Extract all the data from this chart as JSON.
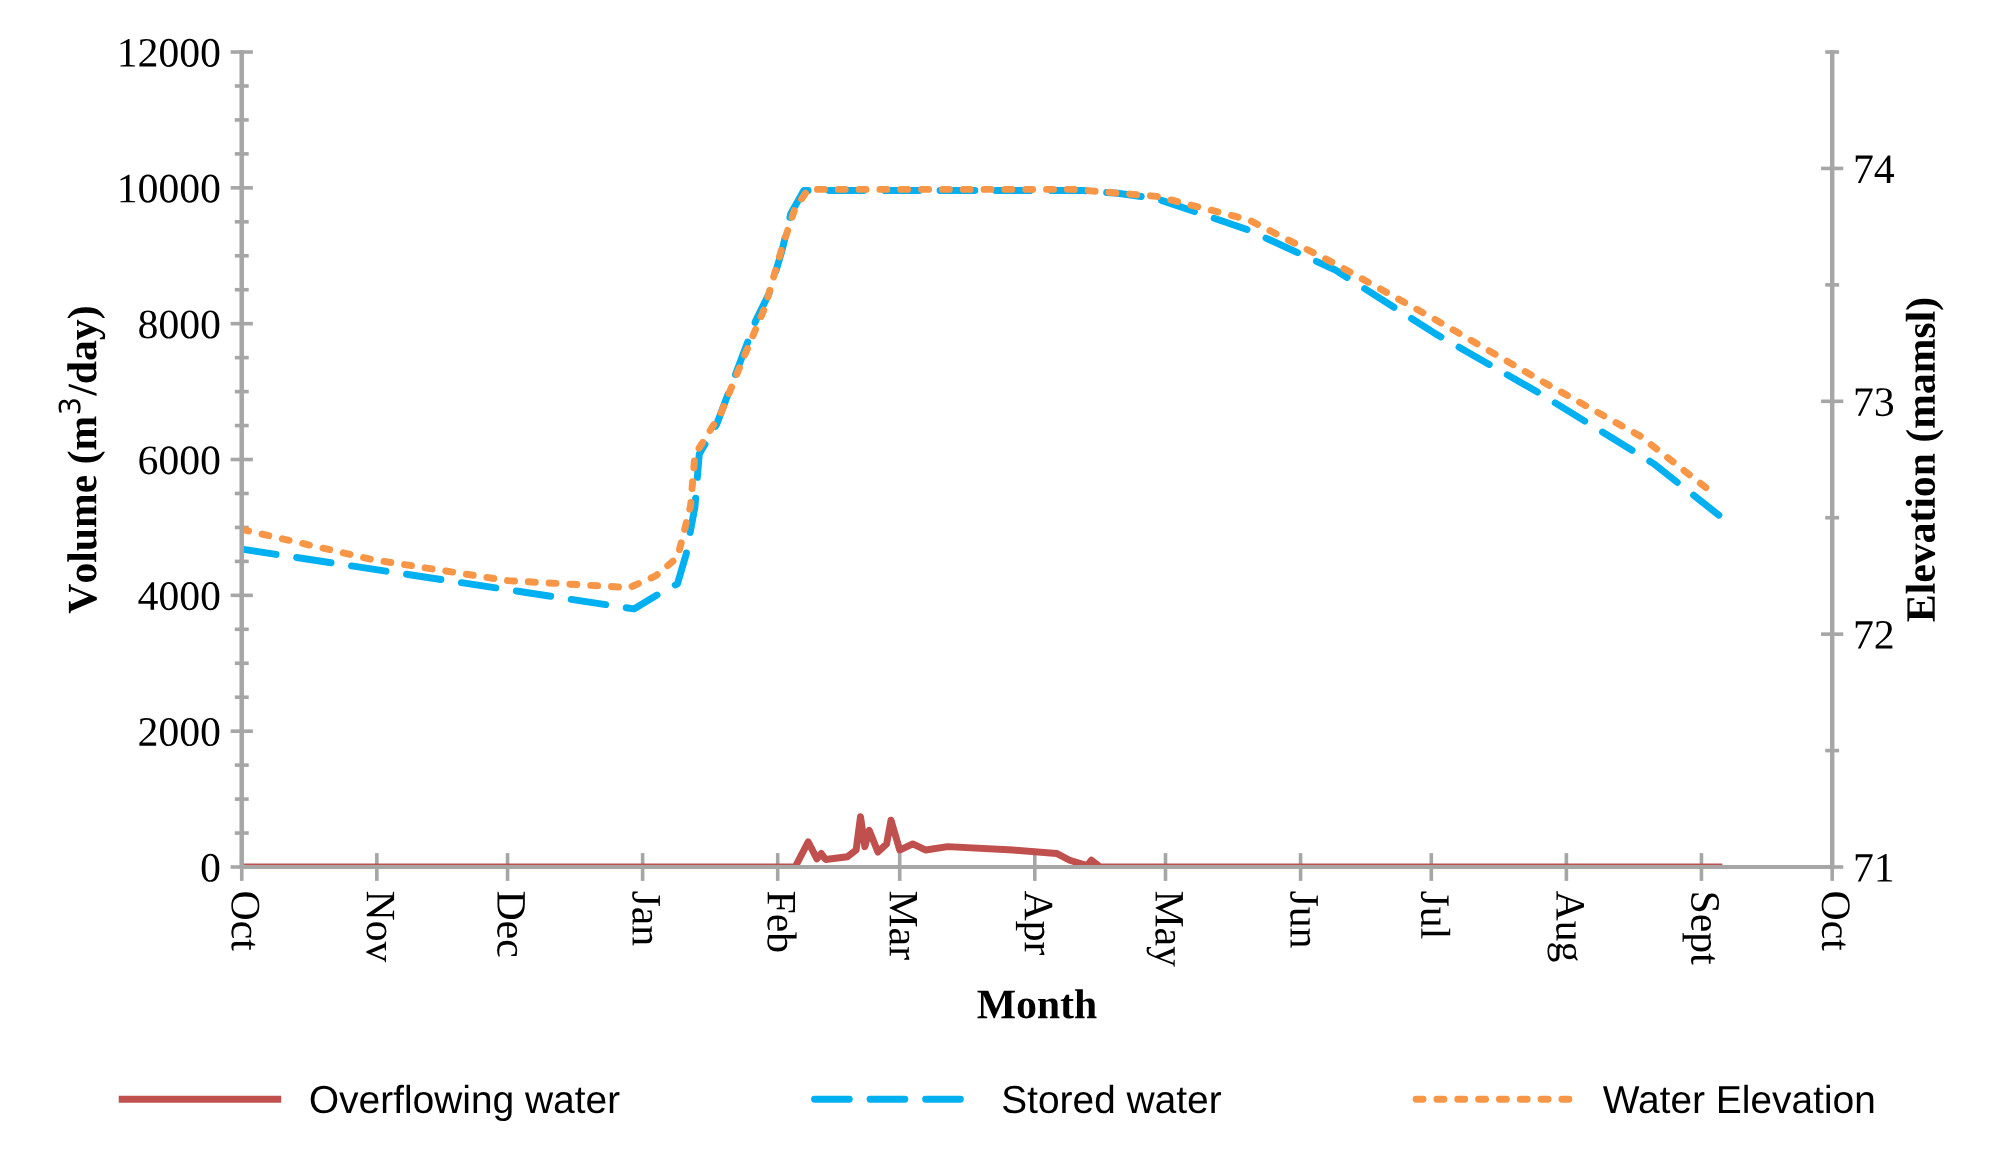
{
  "chart_data": {
    "type": "line",
    "xlabel": "Month",
    "ylabel": "Volume (m$^{3}$/day)",
    "y2label": "Elevation (mamsl)",
    "xlim": [
      "2000-10-01",
      "2001-10-01"
    ],
    "xticks": [
      {
        "value": "2000-10-01",
        "label": "Oct"
      },
      {
        "value": "2000-11-01",
        "label": "Nov"
      },
      {
        "value": "2000-12-01",
        "label": "Dec"
      },
      {
        "value": "2001-01-01",
        "label": "Jan"
      },
      {
        "value": "2001-02-01",
        "label": "Feb"
      },
      {
        "value": "2001-03-01",
        "label": "Mar"
      },
      {
        "value": "2001-04-01",
        "label": "Apr"
      },
      {
        "value": "2001-05-01",
        "label": "May"
      },
      {
        "value": "2001-06-01",
        "label": "Jun"
      },
      {
        "value": "2001-07-01",
        "label": "Jul"
      },
      {
        "value": "2001-08-01",
        "label": "Aug"
      },
      {
        "value": "2001-09-01",
        "label": "Sept"
      },
      {
        "value": "2001-10-01",
        "label": "Oct"
      }
    ],
    "ylim": [
      0,
      12000
    ],
    "yticks": [
      0,
      2000,
      4000,
      6000,
      8000,
      10000,
      12000
    ],
    "y2lim": [
      71,
      74.5
    ],
    "y2ticks": [
      71,
      72,
      73,
      74
    ],
    "grid": false,
    "legend": "bottom",
    "series": [
      {
        "name": "Overflowing water",
        "color": "#c0504d",
        "line_style": "solid",
        "x": [
          "2000-10-01",
          "2001-02-05",
          "2001-02-08",
          "2001-02-10",
          "2001-02-11",
          "2001-02-12",
          "2001-02-17",
          "2001-02-19",
          "2001-02-20",
          "2001-02-21",
          "2001-02-22",
          "2001-02-24",
          "2001-02-26",
          "2001-02-27",
          "2001-03-01",
          "2001-03-04",
          "2001-03-07",
          "2001-03-12",
          "2001-03-27",
          "2001-04-06",
          "2001-04-09",
          "2001-04-13",
          "2001-04-14",
          "2001-04-16",
          "2001-09-05"
        ],
        "values": [
          0,
          0,
          370,
          120,
          200,
          110,
          150,
          250,
          740,
          300,
          540,
          220,
          340,
          690,
          250,
          340,
          250,
          300,
          250,
          200,
          100,
          20,
          100,
          0,
          0
        ]
      },
      {
        "name": "Stored water",
        "color": "#00b0f0",
        "line_style": "dashed",
        "x": [
          "2000-10-01",
          "2000-12-30",
          "2001-01-06",
          "2001-01-09",
          "2001-01-11",
          "2001-01-13",
          "2001-01-14",
          "2001-01-18",
          "2001-01-23",
          "2001-01-27",
          "2001-01-30",
          "2001-02-02",
          "2001-02-04",
          "2001-02-07",
          "2001-04-12",
          "2001-04-20",
          "2001-04-29",
          "2001-05-20",
          "2001-06-09",
          "2001-07-02",
          "2001-07-26",
          "2001-08-21",
          "2001-09-05"
        ],
        "values": [
          4680,
          3800,
          4070,
          4170,
          4610,
          5300,
          6080,
          6520,
          7370,
          8050,
          8440,
          9080,
          9620,
          9960,
          9960,
          9920,
          9840,
          9380,
          8790,
          7850,
          6970,
          5940,
          5180
        ]
      },
      {
        "name": "Water Elevation",
        "color": "#f79646",
        "line_style": "dotted",
        "axis": "y2",
        "x": [
          "2000-10-01",
          "2000-10-31",
          "2000-12-01",
          "2000-12-29",
          "2001-01-04",
          "2001-01-09",
          "2001-01-12",
          "2001-01-13",
          "2001-01-19",
          "2001-01-24",
          "2001-01-29",
          "2001-02-02",
          "2001-02-05",
          "2001-02-08",
          "2001-04-10",
          "2001-04-29",
          "2001-05-20",
          "2001-06-09",
          "2001-07-02",
          "2001-07-26",
          "2001-08-18",
          "2001-09-04"
        ],
        "values": [
          72.45,
          72.32,
          72.23,
          72.2,
          72.25,
          72.33,
          72.55,
          72.77,
          72.95,
          73.18,
          73.4,
          73.66,
          73.83,
          73.91,
          73.91,
          73.88,
          73.78,
          73.59,
          73.35,
          73.09,
          72.85,
          72.6
        ]
      }
    ]
  }
}
